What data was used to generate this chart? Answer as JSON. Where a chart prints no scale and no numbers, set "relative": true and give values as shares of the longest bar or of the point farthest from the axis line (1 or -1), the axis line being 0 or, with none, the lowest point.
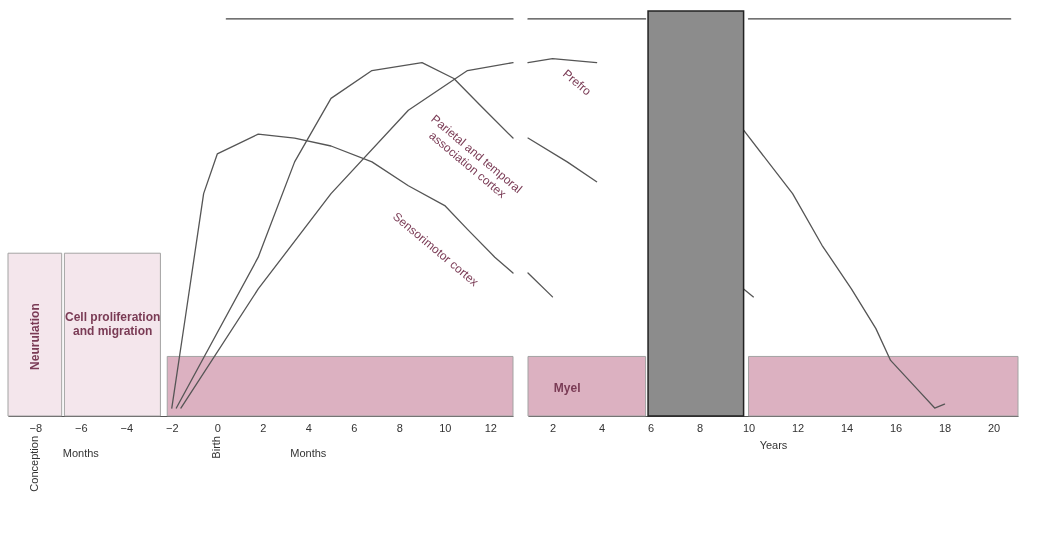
{
  "chart_data": [
    {
      "type": "line",
      "relative": true,
      "xlim": [
        -9.2,
        13
      ],
      "xticks": [
        -8,
        -6,
        -4,
        -2,
        0,
        2,
        4,
        6,
        8,
        10,
        12
      ],
      "grid": false,
      "line_style": "solid",
      "series": [
        {
          "name": "Neurulation",
          "type": "area",
          "color": "#f3e4ea",
          "x": [
            -9.2,
            -6.84
          ],
          "values": [
            0.41,
            0.41
          ]
        },
        {
          "name": "Cell proliferation and migration",
          "type": "area",
          "color": "#f3e4ea",
          "x": [
            -6.72,
            -2.5
          ],
          "values": [
            0.41,
            0.41
          ]
        },
        {
          "type": "area",
          "color": "#d9a9bb",
          "x": [
            -2.2,
            13
          ],
          "values": [
            0.15,
            0.15
          ]
        },
        {
          "color": "#444444",
          "x": [
            0.4,
            13
          ],
          "values": [
            1.0,
            1.0
          ]
        },
        {
          "name": "Sensorimotor cortex",
          "color": "#555555",
          "x": [
            -2,
            -1.4,
            -0.6,
            0,
            1.8,
            3.4,
            5,
            6.8,
            8.4,
            10,
            11,
            12.2,
            13
          ],
          "values": [
            0.02,
            0.25,
            0.56,
            0.66,
            0.71,
            0.7,
            0.68,
            0.64,
            0.58,
            0.53,
            0.47,
            0.4,
            0.36
          ]
        },
        {
          "name": "Parietal and temporal association cortex",
          "color": "#555555",
          "x": [
            -1.8,
            1.8,
            3.4,
            5,
            6.8,
            9,
            10.4,
            11.6,
            13
          ],
          "values": [
            0.02,
            0.4,
            0.64,
            0.8,
            0.87,
            0.89,
            0.85,
            0.78,
            0.7
          ]
        },
        {
          "color": "#555555",
          "x": [
            -1.6,
            1.8,
            5,
            8.4,
            11,
            13
          ],
          "values": [
            0.02,
            0.32,
            0.56,
            0.77,
            0.87,
            0.89
          ]
        }
      ],
      "annotations": [
        "Conception",
        "Months",
        "Birth",
        "Months"
      ]
    },
    {
      "type": "line",
      "relative": true,
      "xlim": [
        1,
        21
      ],
      "xticks": [
        2,
        4,
        6,
        8,
        10,
        12,
        14,
        16,
        18,
        20
      ],
      "xlabel": "Years",
      "grid": false,
      "line_style": "solid",
      "series": [
        {
          "name": "Myel",
          "type": "area",
          "color": "#d9a9bb",
          "x": [
            1,
            5.8,
            7.8,
            10,
            21
          ],
          "values": [
            0.15,
            0.15,
            null,
            0.15,
            0.15
          ]
        },
        {
          "color": "#444444",
          "x": [
            1,
            5.8,
            7.8,
            10,
            20.7
          ],
          "values": [
            1.0,
            1.0,
            null,
            1.0,
            1.0
          ]
        },
        {
          "color": "#555555",
          "x": [
            1,
            2
          ],
          "values": [
            0.36,
            0.3
          ]
        },
        {
          "color": "#555555",
          "x": [
            1,
            2.6,
            3.8,
            7.8,
            9.8,
            10.2
          ],
          "values": [
            0.7,
            0.64,
            0.59,
            null,
            0.32,
            0.3
          ]
        },
        {
          "name": "Prefro",
          "color": "#555555",
          "x": [
            1,
            2,
            3.8,
            7.8,
            9.8,
            11.8,
            13,
            14.2,
            15.2,
            15.8,
            17,
            17.6,
            18
          ],
          "values": [
            0.89,
            0.9,
            0.89,
            null,
            0.72,
            0.56,
            0.43,
            0.32,
            0.22,
            0.14,
            0.06,
            0.02,
            0.03
          ]
        }
      ],
      "bands": [
        {
          "axis": "x",
          "from": 5.9,
          "to": 9.8,
          "color": "#8c8c8c"
        }
      ]
    }
  ]
}
